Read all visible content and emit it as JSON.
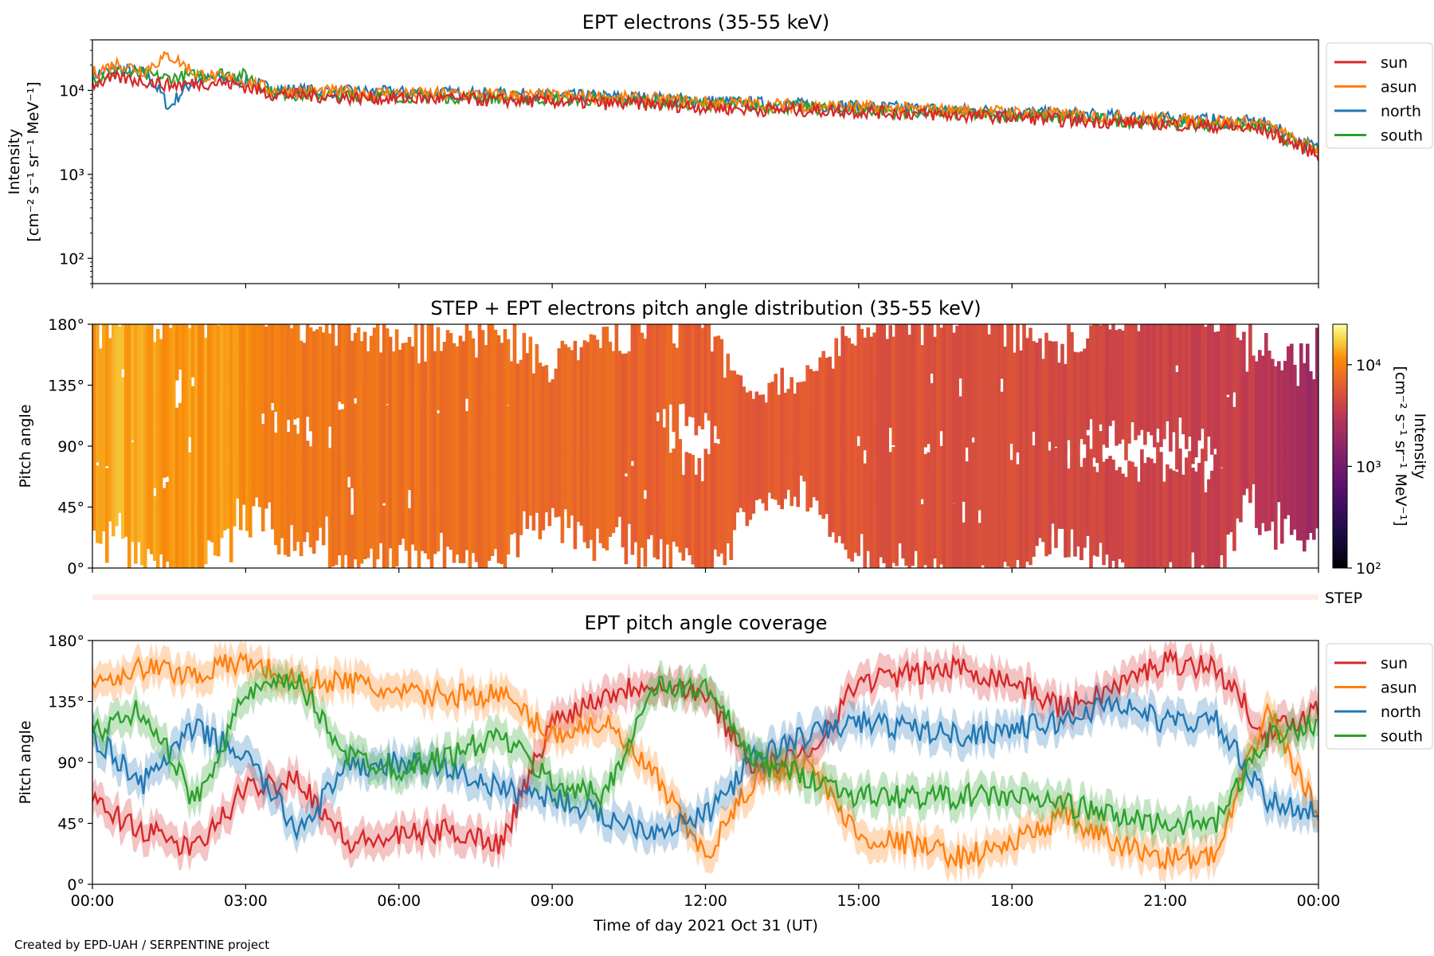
{
  "figure": {
    "credit": "Created by EPD-UAH / SERPENTINE project",
    "xlabel": "Time of day 2021 Oct 31 (UT)",
    "xticks": [
      "00:00",
      "03:00",
      "06:00",
      "09:00",
      "12:00",
      "15:00",
      "18:00",
      "21:00",
      "00:00"
    ]
  },
  "chart_data": [
    {
      "type": "line",
      "title": "EPT electrons (35-55 keV)",
      "ylabel_line1": "Intensity",
      "ylabel_line2": "[cm⁻² s⁻¹ sr⁻¹ MeV⁻¹]",
      "yscale": "log",
      "ylim": [
        50,
        40000
      ],
      "yticks": [
        {
          "v": 100,
          "label": "10²"
        },
        {
          "v": 1000,
          "label": "10³"
        },
        {
          "v": 10000,
          "label": "10⁴"
        }
      ],
      "xlim_hours": [
        0,
        24
      ],
      "legend_position": "outside-right",
      "x_hours": [
        0,
        0.5,
        1.0,
        1.5,
        2.0,
        2.5,
        3.0,
        3.5,
        4.0,
        5,
        6,
        7,
        8,
        9,
        10,
        11,
        12,
        13,
        14,
        15,
        16,
        17,
        18,
        19,
        20,
        21,
        22,
        22.9,
        23.5,
        24
      ],
      "series": [
        {
          "name": "sun",
          "color": "#d62728",
          "values": [
            12000,
            14000,
            13000,
            11500,
            12000,
            12500,
            11000,
            9000,
            8800,
            8200,
            8000,
            7900,
            7600,
            7400,
            7000,
            6800,
            6300,
            5900,
            5800,
            5600,
            5300,
            5000,
            4800,
            4400,
            4200,
            4000,
            3700,
            3400,
            2300,
            1700
          ]
        },
        {
          "name": "asun",
          "color": "#ff7f0e",
          "values": [
            16000,
            21000,
            17000,
            26000,
            16000,
            14000,
            13000,
            10000,
            9800,
            9500,
            9200,
            9000,
            8800,
            8500,
            8200,
            7800,
            7200,
            6800,
            6600,
            6300,
            6000,
            5700,
            5500,
            5100,
            4800,
            4500,
            4300,
            4000,
            2600,
            1900
          ]
        },
        {
          "name": "north",
          "color": "#1f77b4",
          "values": [
            15000,
            18000,
            16000,
            6000,
            13000,
            14000,
            13000,
            10500,
            10000,
            9600,
            9400,
            9200,
            9000,
            8700,
            8400,
            8000,
            7400,
            7000,
            6700,
            6400,
            6100,
            5800,
            5600,
            5200,
            4900,
            4600,
            4400,
            4100,
            2700,
            2000
          ]
        },
        {
          "name": "south",
          "color": "#2ca02c",
          "values": [
            14000,
            17000,
            15000,
            14000,
            15000,
            16000,
            15000,
            9500,
            9000,
            8800,
            8600,
            8400,
            8200,
            8000,
            7700,
            7400,
            6900,
            6500,
            6200,
            5900,
            5600,
            5300,
            5100,
            4700,
            4400,
            4200,
            3900,
            3700,
            2400,
            1800
          ]
        }
      ]
    },
    {
      "type": "heatmap",
      "title": "STEP + EPT electrons pitch angle distribution (35-55 keV)",
      "ylabel": "Pitch angle",
      "ylim_deg": [
        0,
        180
      ],
      "yticks": [
        {
          "v": 0,
          "label": "0°"
        },
        {
          "v": 45,
          "label": "45°"
        },
        {
          "v": 90,
          "label": "90°"
        },
        {
          "v": 135,
          "label": "135°"
        },
        {
          "v": 180,
          "label": "180°"
        }
      ],
      "colorbar": {
        "label_line1": "Intensity",
        "label_line2": "[cm⁻² s⁻¹ sr⁻¹ MeV⁻¹]",
        "scale": "log",
        "range": [
          100,
          25000
        ],
        "ticks": [
          {
            "v": 100,
            "label": "10²"
          },
          {
            "v": 1000,
            "label": "10³"
          },
          {
            "v": 10000,
            "label": "10⁴"
          }
        ],
        "colormap": "inferno-like"
      },
      "step_label": "STEP",
      "note": "intensity decreases from ~1.5e4 at 00:00 to ~2e3 at 24:00; white gaps where no coverage"
    },
    {
      "type": "line",
      "title": "EPT pitch angle coverage",
      "ylabel": "Pitch angle",
      "ylim_deg": [
        0,
        180
      ],
      "yticks": [
        {
          "v": 0,
          "label": "0°"
        },
        {
          "v": 45,
          "label": "45°"
        },
        {
          "v": 90,
          "label": "90°"
        },
        {
          "v": 135,
          "label": "135°"
        },
        {
          "v": 180,
          "label": "180°"
        }
      ],
      "legend_position": "outside-right",
      "x_hours": [
        0,
        1,
        2,
        3,
        4,
        5,
        6,
        7,
        8,
        9,
        10,
        11,
        12,
        13,
        14,
        15,
        16,
        17,
        18,
        19,
        20,
        21,
        22,
        23,
        24
      ],
      "series": [
        {
          "name": "sun",
          "color": "#d62728",
          "values": [
            60,
            40,
            25,
            70,
            80,
            30,
            35,
            40,
            30,
            120,
            140,
            150,
            140,
            85,
            95,
            150,
            155,
            160,
            150,
            130,
            145,
            165,
            160,
            110,
            130
          ]
        },
        {
          "name": "asun",
          "color": "#ff7f0e",
          "values": [
            150,
            160,
            155,
            165,
            150,
            150,
            140,
            140,
            140,
            110,
            120,
            80,
            20,
            80,
            90,
            35,
            30,
            20,
            30,
            50,
            30,
            20,
            20,
            130,
            50
          ]
        },
        {
          "name": "north",
          "color": "#1f77b4",
          "values": [
            110,
            75,
            115,
            95,
            40,
            85,
            90,
            85,
            70,
            65,
            50,
            40,
            50,
            95,
            110,
            120,
            115,
            110,
            115,
            120,
            135,
            120,
            120,
            60,
            55
          ]
        },
        {
          "name": "south",
          "color": "#2ca02c",
          "values": [
            110,
            130,
            60,
            140,
            150,
            95,
            85,
            95,
            110,
            75,
            65,
            145,
            145,
            90,
            80,
            65,
            65,
            65,
            65,
            60,
            50,
            45,
            45,
            110,
            120
          ]
        }
      ]
    }
  ]
}
